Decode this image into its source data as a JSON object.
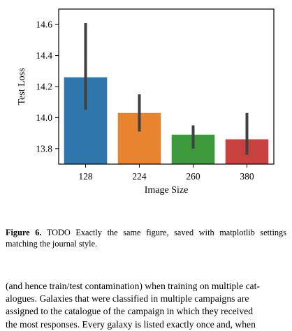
{
  "chart_data": {
    "type": "bar",
    "categories": [
      "128",
      "224",
      "260",
      "380"
    ],
    "values": [
      14.26,
      14.03,
      13.89,
      13.86
    ],
    "error_bars": [
      [
        14.05,
        14.61
      ],
      [
        13.91,
        14.15
      ],
      [
        13.8,
        13.95
      ],
      [
        13.76,
        14.03
      ]
    ],
    "colors": [
      "#2f76ad",
      "#e88430",
      "#3c9a3c",
      "#c8413f"
    ],
    "errorbar_color": "#404040",
    "xlabel": "Image Size",
    "ylabel": "Test Loss",
    "ylim": [
      13.7,
      14.7
    ],
    "yticks": [
      "13.8",
      "14.0",
      "14.2",
      "14.4",
      "14.6"
    ],
    "grid": false
  },
  "caption": {
    "label": "Figure 6.",
    "text": " TODO Exactly the same figure, saved with matplotlib settings matching the journal style."
  },
  "body_lines": [
    "(and hence train/test contamination) when training on multiple cat-",
    "alogues. Galaxies that were classified in multiple campaigns are",
    "assigned to the catalogue of the campaign in which they received",
    "the most responses. Every galaxy is listed exactly once and, when"
  ]
}
